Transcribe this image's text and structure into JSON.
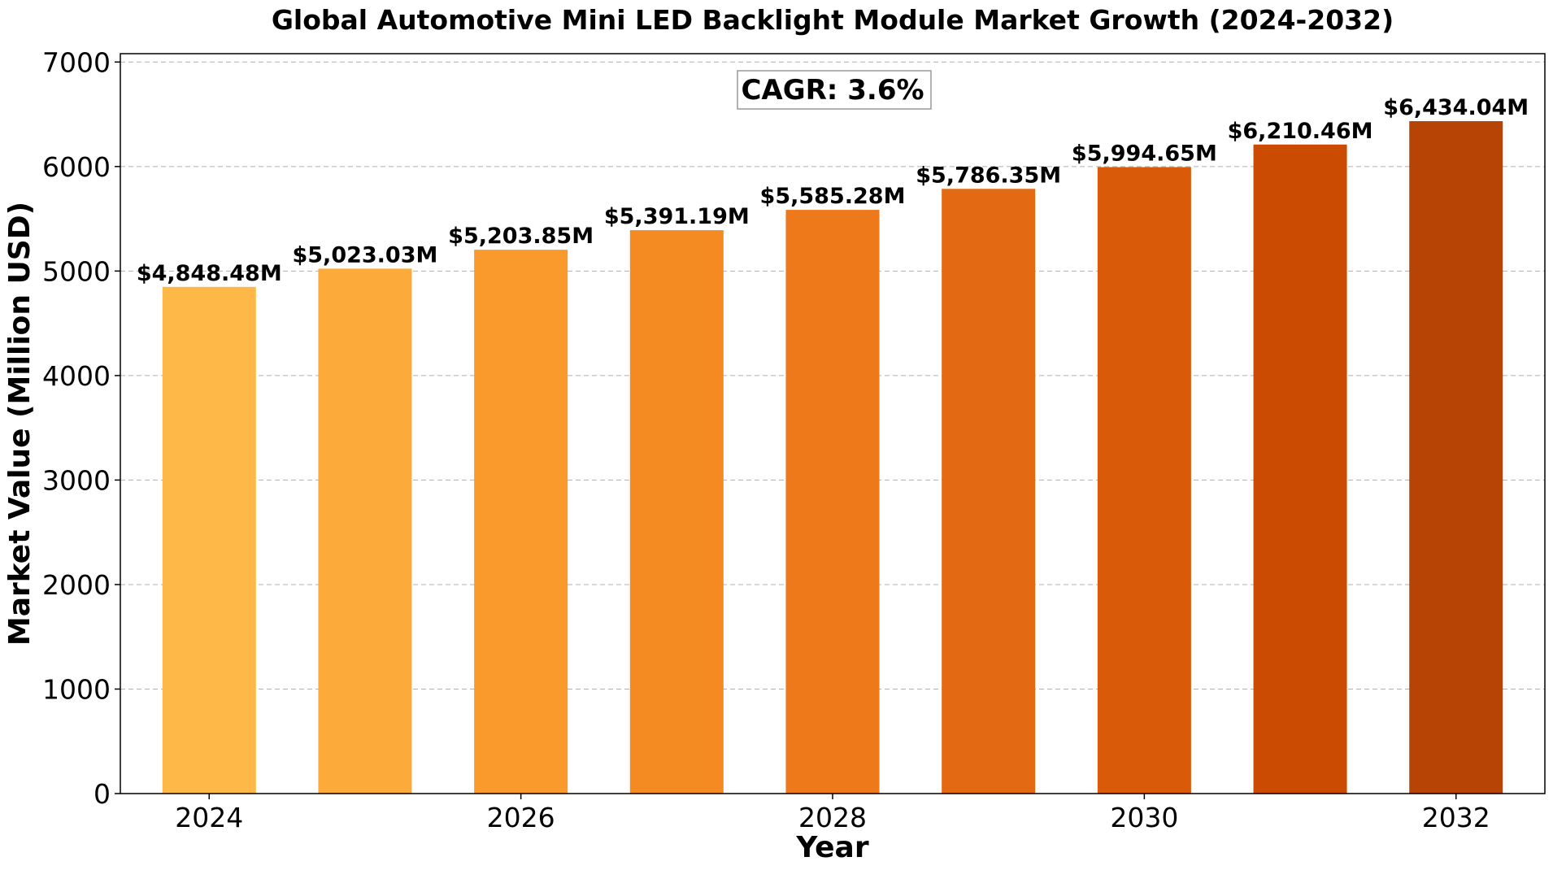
{
  "chart_data": {
    "type": "bar",
    "title": "Global Automotive Mini LED Backlight Module Market Growth (2024-2032)",
    "xlabel": "Year",
    "ylabel": "Market Value (Million USD)",
    "categories": [
      "2024",
      "2025",
      "2026",
      "2027",
      "2028",
      "2029",
      "2030",
      "2031",
      "2032"
    ],
    "values": [
      4848.48,
      5023.03,
      5203.85,
      5391.19,
      5585.28,
      5786.35,
      5994.65,
      6210.46,
      6434.04
    ],
    "value_labels": [
      "$4,848.48M",
      "$5,023.03M",
      "$5,203.85M",
      "$5,391.19M",
      "$5,585.28M",
      "$5,786.35M",
      "$5,994.65M",
      "$6,210.46M",
      "$6,434.04M"
    ],
    "x_tick_labels": [
      "2024",
      "2026",
      "2028",
      "2030",
      "2032"
    ],
    "y_ticks": [
      0,
      1000,
      2000,
      3000,
      4000,
      5000,
      6000,
      7000
    ],
    "ylim": [
      0,
      7080
    ],
    "xlim": [
      2023.43,
      2032.57
    ],
    "grid": "horizontal-dashed",
    "annotation": "CAGR: 3.6%",
    "bar_colors": [
      "#fdb847",
      "#fcab3a",
      "#fb9a2c",
      "#f48a22",
      "#ee791b",
      "#e36a13",
      "#d95b0a",
      "#cb4b03",
      "#b74304"
    ]
  }
}
